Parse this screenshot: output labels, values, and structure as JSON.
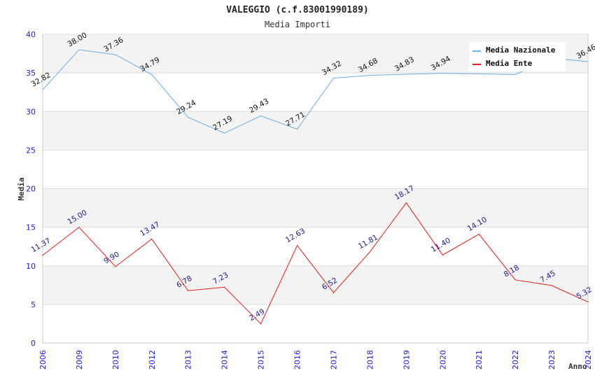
{
  "chart_data": {
    "type": "line",
    "title": "VALEGGIO (c.f.83001990189)",
    "subtitle": "Media Importi",
    "xlabel": "Anno",
    "ylabel": "Media",
    "ylim": [
      0,
      40
    ],
    "yticks": [
      "0",
      "5",
      "10",
      "15",
      "20",
      "25",
      "30",
      "35",
      "40"
    ],
    "grid": true,
    "legend_position": "top-right",
    "categories": [
      "2006",
      "2009",
      "2010",
      "2012",
      "2013",
      "2014",
      "2015",
      "2016",
      "2017",
      "2018",
      "2019",
      "2020",
      "2021",
      "2022",
      "2023",
      "2024"
    ],
    "series": [
      {
        "name": "Media Nazionale",
        "color": "#6aaee8",
        "label_color": "#111111",
        "values": [
          32.82,
          38.0,
          37.36,
          34.79,
          29.24,
          27.19,
          29.43,
          27.71,
          34.32,
          34.68,
          34.83,
          34.94,
          34.88,
          34.79,
          36.9,
          36.46
        ],
        "labels": [
          "32.82",
          "38.00",
          "37.36",
          "34.79",
          "29.24",
          "27.19",
          "29.43",
          "27.71",
          "34.32",
          "34.68",
          "34.83",
          "34.94",
          null,
          null,
          null,
          "36.46"
        ]
      },
      {
        "name": "Media Ente",
        "color": "#e81c1c",
        "label_color": "#1a1a8c",
        "values": [
          11.37,
          15.0,
          9.9,
          13.47,
          6.78,
          7.23,
          2.49,
          12.63,
          6.52,
          11.81,
          18.17,
          11.4,
          14.1,
          8.18,
          7.45,
          5.32
        ],
        "labels": [
          "11.37",
          "15.00",
          "9.90",
          "13.47",
          "6.78",
          "7.23",
          "2.49",
          "12.63",
          "6.52",
          "11.81",
          "18.17",
          "11.40",
          "14.10",
          "8.18",
          "7.45",
          "5.32"
        ]
      }
    ]
  }
}
